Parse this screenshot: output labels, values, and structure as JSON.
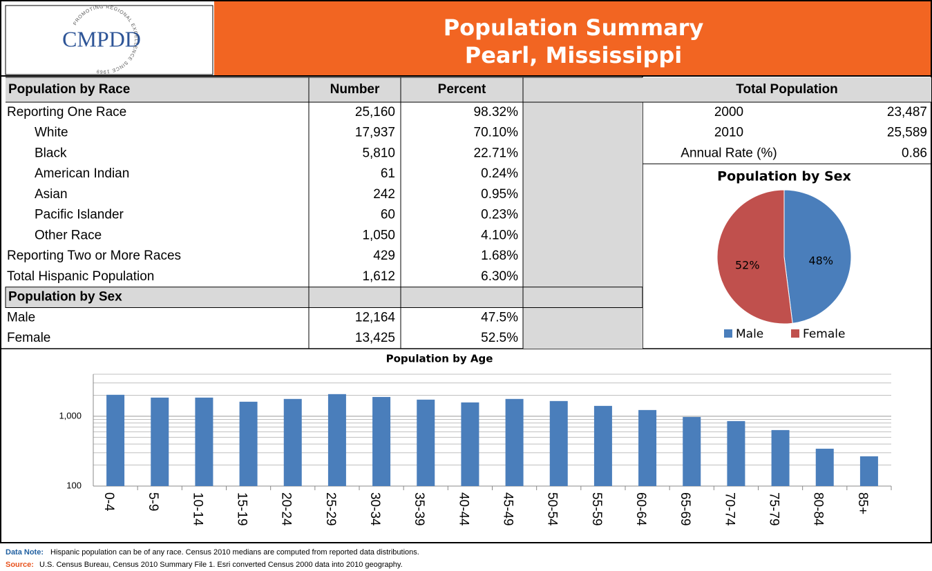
{
  "header": {
    "logo": "CMPDD",
    "logo_ring": "PROMOTING REGIONAL EXCELLENCE SINCE 1969",
    "title": "Population Summary",
    "subtitle": "Pearl, Mississippi"
  },
  "race_table": {
    "title": "Population by Race",
    "columns": [
      "Number",
      "Percent"
    ],
    "rows": [
      [
        "Reporting One Race",
        "25,160",
        "98.32%"
      ],
      [
        "White",
        "17,937",
        "70.10%"
      ],
      [
        "Black",
        "5,810",
        "22.71%"
      ],
      [
        "American Indian",
        "61",
        "0.24%"
      ],
      [
        "Asian",
        "242",
        "0.95%"
      ],
      [
        "Pacific Islander",
        "60",
        "0.23%"
      ],
      [
        "Other Race",
        "1,050",
        "4.10%"
      ],
      [
        "Reporting Two or More Races",
        "429",
        "1.68%"
      ],
      [
        "Total Hispanic Population",
        "1,612",
        "6.30%"
      ]
    ]
  },
  "sex_table": {
    "title": "Population by Sex",
    "rows": [
      [
        "Male",
        "12,164",
        "47.5%"
      ],
      [
        "Female",
        "13,425",
        "52.5%"
      ]
    ]
  },
  "total_population": {
    "title": "Total Population",
    "rows": [
      [
        "2000",
        "23,487"
      ],
      [
        "2010",
        "25,589"
      ],
      [
        "Annual Rate (%)",
        "0.86"
      ]
    ]
  },
  "chart_data": [
    {
      "type": "pie",
      "title": "Population by Sex",
      "categories": [
        "Male",
        "Female"
      ],
      "values": [
        48,
        52
      ],
      "value_labels": [
        "48%",
        "52%"
      ],
      "colors": [
        "#4a7ebb",
        "#c0504d"
      ],
      "legend": "bottom"
    },
    {
      "type": "bar",
      "title": "Population by Age",
      "categories": [
        "0-4",
        "5-9",
        "10-14",
        "15-19",
        "20-24",
        "25-29",
        "30-34",
        "35-39",
        "40-44",
        "45-49",
        "50-54",
        "55-59",
        "60-64",
        "65-69",
        "70-74",
        "75-79",
        "80-84",
        "85+"
      ],
      "values": [
        2030,
        1850,
        1850,
        1615,
        1770,
        2075,
        1890,
        1730,
        1578,
        1770,
        1652,
        1408,
        1228,
        977,
        853,
        634,
        343,
        267
      ],
      "color": "#4a7ebb",
      "log_scale": true,
      "ylim": [
        100,
        4000
      ],
      "yticks": [
        100,
        {
          "value": 1000,
          "label": "1,000"
        }
      ],
      "grid": true,
      "minor_grid": true
    }
  ],
  "notes": {
    "data_note_label": "Data Note:",
    "data_note": "Hispanic population can be of any race.  Census 2010 medians are computed from reported data distributions.",
    "source_label": "Source:",
    "source": "U.S. Census Bureau, Census 2010 Summary File 1. Esri converted Census 2000 data into 2010 geography."
  }
}
